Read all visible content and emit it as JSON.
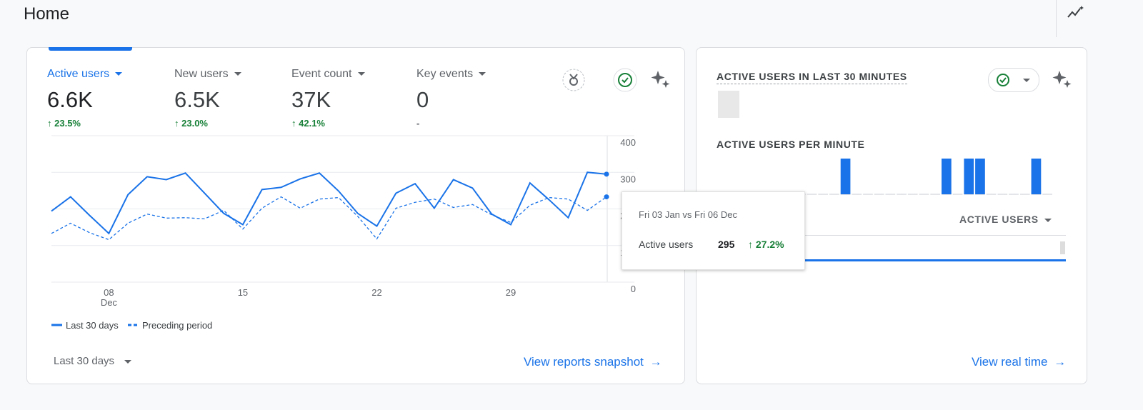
{
  "header": {
    "title": "Home"
  },
  "metrics": [
    {
      "label": "Active users",
      "value": "6.6K",
      "change": "23.5%"
    },
    {
      "label": "New users",
      "value": "6.5K",
      "change": "23.0%"
    },
    {
      "label": "Event count",
      "value": "37K",
      "change": "42.1%"
    },
    {
      "label": "Key events",
      "value": "0",
      "change": "-"
    }
  ],
  "chart_data": [
    {
      "type": "line",
      "categories": [
        null,
        null,
        null,
        "08",
        null,
        null,
        null,
        null,
        null,
        null,
        "15",
        null,
        null,
        null,
        null,
        null,
        null,
        "22",
        null,
        null,
        null,
        null,
        null,
        null,
        "29",
        null,
        null,
        null,
        null,
        null
      ],
      "month_label": "Dec",
      "series": [
        {
          "name": "Last 30 days",
          "color": "#1a73e8",
          "values": [
            194,
            233,
            182,
            133,
            239,
            288,
            280,
            298,
            243,
            188,
            157,
            253,
            259,
            282,
            298,
            249,
            188,
            153,
            243,
            269,
            202,
            280,
            257,
            186,
            157,
            271,
            225,
            176,
            300,
            295
          ]
        },
        {
          "name": "Preceding period",
          "color": "#1a73e8",
          "dashed": true,
          "values": [
            133,
            161,
            135,
            116,
            161,
            186,
            175,
            176,
            173,
            196,
            145,
            202,
            233,
            202,
            227,
            231,
            180,
            118,
            202,
            218,
            227,
            204,
            212,
            184,
            163,
            210,
            231,
            227,
            196,
            233
          ]
        }
      ],
      "ylim": [
        0,
        400
      ],
      "yticks": [
        0,
        100,
        200,
        300,
        400
      ],
      "grid": true
    },
    {
      "type": "bar",
      "title": "ACTIVE USERS PER MINUTE",
      "color": "#1a73e8",
      "values": [
        0,
        0,
        0,
        0,
        0,
        0,
        0,
        0,
        0,
        0,
        0,
        1,
        0,
        0,
        0,
        0,
        0,
        0,
        0,
        0,
        1,
        0,
        1,
        1,
        0,
        0,
        0,
        0,
        1,
        0
      ],
      "ylim": [
        0,
        1
      ]
    }
  ],
  "tooltip": {
    "title": "Fri 03 Jan vs Fri 06 Dec",
    "label": "Active users",
    "change": "27.2%"
  },
  "period_selector": "Last 30 days",
  "links": {
    "snapshot": "View reports snapshot",
    "realtime": "View real time"
  },
  "realtime": {
    "title": "ACTIVE USERS IN LAST 30 MINUTES",
    "table_header": "ACTIVE USERS"
  }
}
